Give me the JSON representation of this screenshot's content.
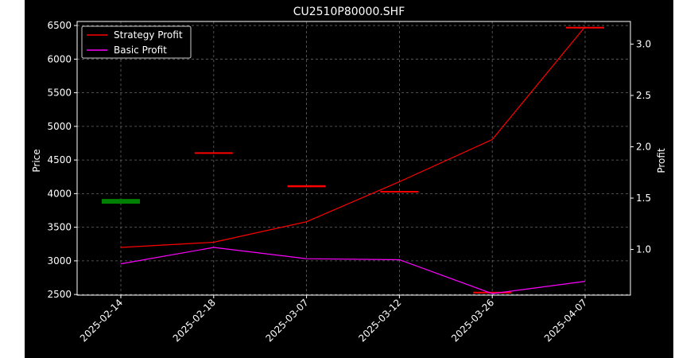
{
  "chart_data": {
    "type": "line",
    "title": "CU2510P80000.SHF",
    "ylabel_left": "Price",
    "ylabel_right": "Profit",
    "categories": [
      "2025-02-14",
      "2025-02-18",
      "2025-03-07",
      "2025-03-12",
      "2025-03-26",
      "2025-04-07"
    ],
    "left_axis": {
      "range": [
        2490,
        6560
      ],
      "ticks": [
        2500,
        3000,
        3500,
        4000,
        4500,
        5000,
        5500,
        6000,
        6500
      ]
    },
    "right_axis": {
      "range": [
        0.555,
        3.22
      ],
      "ticks": [
        "1.0",
        "1.5",
        "2.0",
        "2.5",
        "3.0"
      ]
    },
    "series": [
      {
        "name": "Strategy Profit",
        "color": "#ff0000",
        "axis": "right",
        "values": [
          1.02,
          1.07,
          1.27,
          1.66,
          2.07,
          3.17
        ]
      },
      {
        "name": "Basic Profit",
        "color": "#ff00ff",
        "axis": "right",
        "values": [
          0.86,
          1.02,
          0.91,
          0.9,
          0.57,
          0.69
        ]
      }
    ],
    "candles": [
      {
        "x": 0,
        "open": 3920,
        "close": 3850,
        "color": "#008000"
      },
      {
        "x": 1,
        "open": 4615,
        "close": 4605,
        "color": "#ff0000"
      },
      {
        "x": 2,
        "open": 4125,
        "close": 4095,
        "color": "#ff0000"
      },
      {
        "x": 3,
        "open": 4040,
        "close": 4030,
        "color": "#ff0000"
      },
      {
        "x": 4,
        "open": 2540,
        "close": 2530,
        "color": "#ff0000"
      },
      {
        "x": 5,
        "open": 6480,
        "close": 6470,
        "color": "#ff0000"
      }
    ],
    "grid": true,
    "legend_position": "top-left",
    "background": "#000000"
  }
}
